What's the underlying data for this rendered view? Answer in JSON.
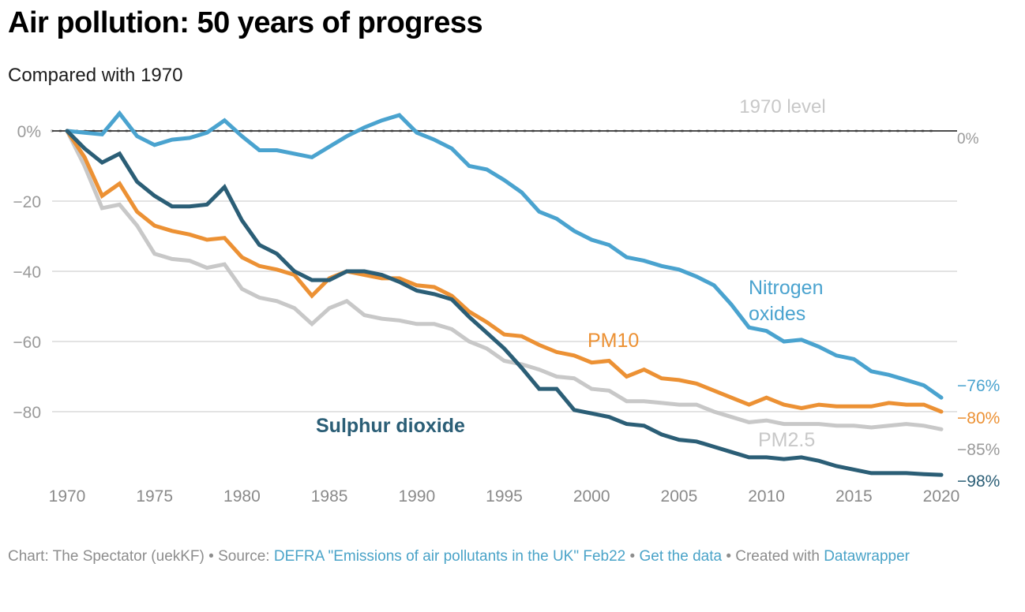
{
  "header": {
    "title": "Air pollution: 50 years of progress",
    "subtitle": "Compared with 1970"
  },
  "footer": {
    "prefix": "Chart: The Spectator (uekKF) • Source: ",
    "source_link": "DEFRA \"Emissions of air pollutants in the UK\" Feb22",
    "sep1": " • ",
    "data_link": "Get the data",
    "sep2": " • Created with ",
    "tool_link": "Datawrapper"
  },
  "chart_data": {
    "type": "line",
    "title": "Air pollution: 50 years of progress",
    "subtitle": "Compared with 1970",
    "xlabel": "",
    "ylabel": "",
    "xlim": [
      1970,
      2020
    ],
    "ylim": [
      -100,
      6
    ],
    "x_ticks": [
      1970,
      1975,
      1980,
      1985,
      1990,
      1995,
      2000,
      2005,
      2010,
      2015,
      2020
    ],
    "x_tick_labels": [
      "1970",
      "1975",
      "1980",
      "1985",
      "1990",
      "1995",
      "2000",
      "2005",
      "2010",
      "2015",
      "2020"
    ],
    "y_ticks": [
      0,
      -20,
      -40,
      -60,
      -80
    ],
    "y_tick_labels": [
      "0%",
      "−20",
      "−40",
      "−60",
      "−80"
    ],
    "grid": true,
    "reference_line": {
      "value": 0,
      "label": "1970 level",
      "end_label": "0%"
    },
    "x": [
      1970,
      1971,
      1972,
      1973,
      1974,
      1975,
      1976,
      1977,
      1978,
      1979,
      1980,
      1981,
      1982,
      1983,
      1984,
      1985,
      1986,
      1987,
      1988,
      1989,
      1990,
      1991,
      1992,
      1993,
      1994,
      1995,
      1996,
      1997,
      1998,
      1999,
      2000,
      2001,
      2002,
      2003,
      2004,
      2005,
      2006,
      2007,
      2008,
      2009,
      2010,
      2011,
      2012,
      2013,
      2014,
      2015,
      2016,
      2017,
      2018,
      2019,
      2020
    ],
    "series": [
      {
        "name": "Nitrogen oxides",
        "label": "Nitrogen oxides",
        "label_lines": [
          "Nitrogen",
          "oxides"
        ],
        "end_label": "−76%",
        "color": "#4aa3cf",
        "values": [
          0,
          -0.5,
          -1,
          5,
          -1.5,
          -4,
          -2.5,
          -2,
          -0.5,
          3,
          -1.5,
          -5.5,
          -5.5,
          -6.5,
          -7.5,
          -4.5,
          -1.5,
          1,
          3,
          4.5,
          -0.5,
          -2.5,
          -5,
          -10,
          -11,
          -14,
          -17.5,
          -23,
          -25,
          -28.5,
          -31,
          -32.5,
          -36,
          -37,
          -38.5,
          -39.5,
          -41.5,
          -44,
          -49.5,
          -56,
          -57,
          -60,
          -59.5,
          -61.5,
          -64,
          -65,
          -68.5,
          -69.5,
          -71,
          -72.5,
          -76
        ]
      },
      {
        "name": "PM10",
        "label": "PM10",
        "label_lines": [
          "PM10"
        ],
        "end_label": "−80%",
        "color": "#ec9134",
        "values": [
          0,
          -7.5,
          -18.5,
          -15,
          -23,
          -27,
          -28.5,
          -29.5,
          -31,
          -30.5,
          -36,
          -38.5,
          -39.5,
          -41,
          -47,
          -42,
          -40,
          -41,
          -42,
          -42,
          -44,
          -44.5,
          -47,
          -51.5,
          -54.5,
          -58,
          -58.5,
          -61,
          -63,
          -64,
          -66,
          -65.5,
          -70,
          -68,
          -70.5,
          -71,
          -72,
          -74,
          -76,
          -78,
          -76,
          -78,
          -79,
          -78,
          -78.5,
          -78.5,
          -78.5,
          -77.5,
          -78,
          -78,
          -80
        ]
      },
      {
        "name": "PM2.5",
        "label": "PM2.5",
        "label_lines": [
          "PM2.5"
        ],
        "end_label": "−85%",
        "color": "#c8c8c8",
        "values": [
          0,
          -10,
          -22,
          -21,
          -27,
          -35,
          -36.5,
          -37,
          -39,
          -38,
          -45,
          -47.5,
          -48.5,
          -50.5,
          -55,
          -50.5,
          -48.5,
          -52.5,
          -53.5,
          -54,
          -55,
          -55,
          -56.5,
          -60,
          -62,
          -65.5,
          -66.5,
          -68,
          -70,
          -70.5,
          -73.5,
          -74,
          -77,
          -77,
          -77.5,
          -78,
          -78,
          -80,
          -81.5,
          -83,
          -82.5,
          -83.5,
          -83.5,
          -83.5,
          -84,
          -84,
          -84.5,
          -84,
          -83.5,
          -84,
          -85
        ]
      },
      {
        "name": "Sulphur dioxide",
        "label": "Sulphur dioxide",
        "label_lines": [
          "Sulphur dioxide"
        ],
        "end_label": "−98%",
        "color": "#2b5e76",
        "values": [
          0,
          -5,
          -9,
          -6.5,
          -14.5,
          -18.5,
          -21.5,
          -21.5,
          -21,
          -16,
          -25.5,
          -32.5,
          -35,
          -40,
          -42.5,
          -42.5,
          -40,
          -40,
          -41,
          -43,
          -45.5,
          -46.5,
          -48,
          -53,
          -57.5,
          -62,
          -67.5,
          -73.5,
          -73.5,
          -79.5,
          -80.5,
          -81.5,
          -83.5,
          -84,
          -86.5,
          -88,
          -88.5,
          -90,
          -91.5,
          -93,
          -93,
          -93.5,
          -93,
          -94,
          -95.5,
          -96.5,
          -97.5,
          -97.5,
          -97.5,
          -97.8,
          -98
        ]
      }
    ]
  }
}
